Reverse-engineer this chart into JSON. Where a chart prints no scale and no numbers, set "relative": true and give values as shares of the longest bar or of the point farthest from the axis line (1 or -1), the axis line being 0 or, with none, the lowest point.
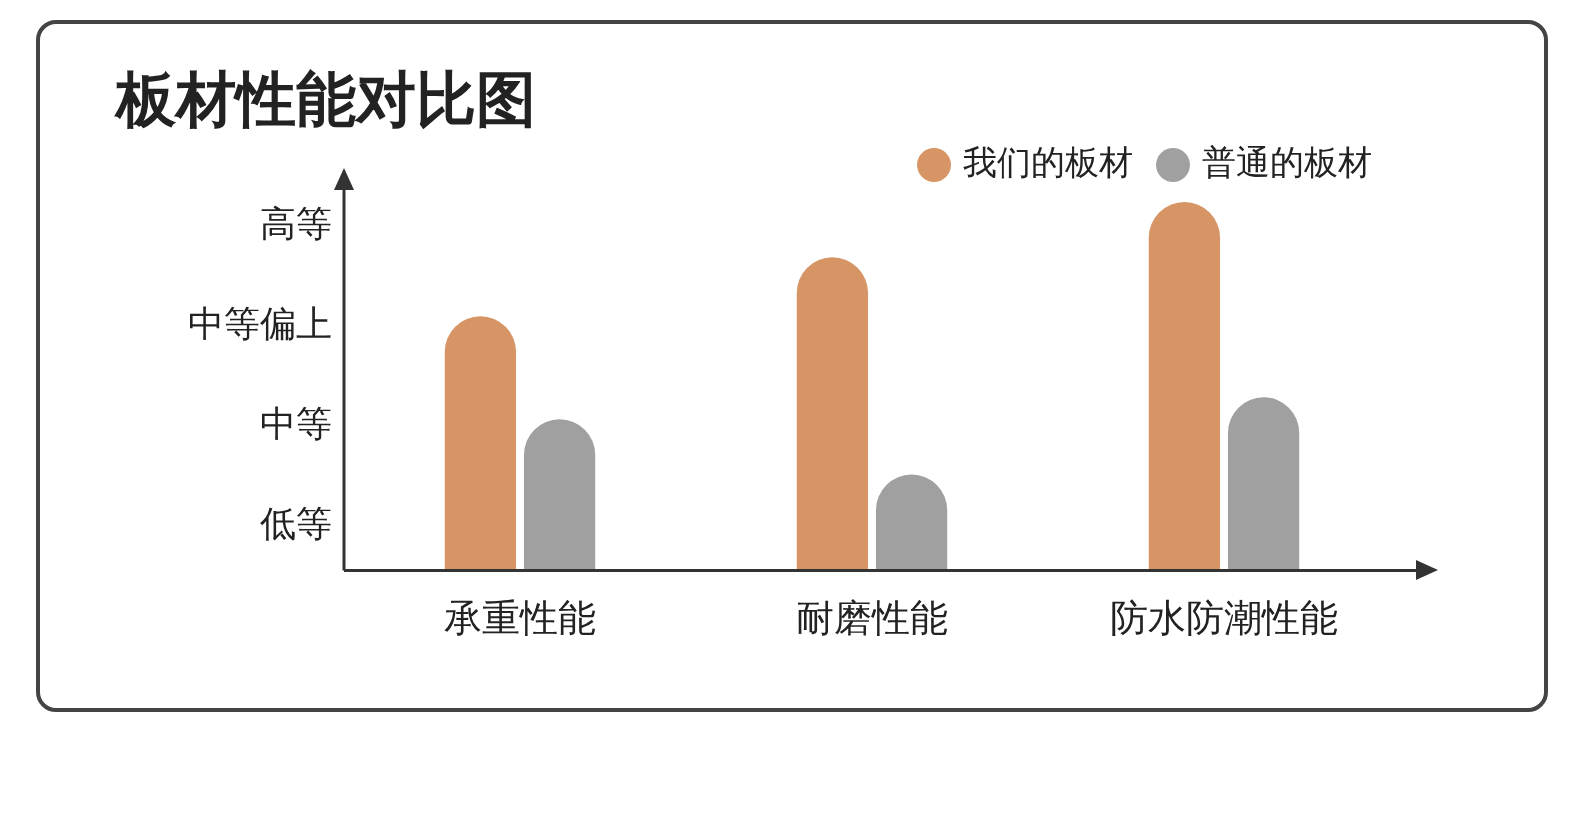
{
  "chart_data": {
    "type": "bar",
    "title": "板材性能对比图",
    "categories": [
      "承重性能",
      "耐磨性能",
      "防水防潮性能"
    ],
    "series": [
      {
        "name": "我们的板材",
        "color": "#d79566",
        "values": [
          0.69,
          0.85,
          1
        ]
      },
      {
        "name": "普通的板材",
        "color": "#a0a0a0",
        "values": [
          0.41,
          0.26,
          0.47
        ]
      }
    ],
    "relative": true,
    "annotations": [
      "高等",
      "中等偏上",
      "中等",
      "低等"
    ],
    "grid": false,
    "legend": "top right"
  }
}
